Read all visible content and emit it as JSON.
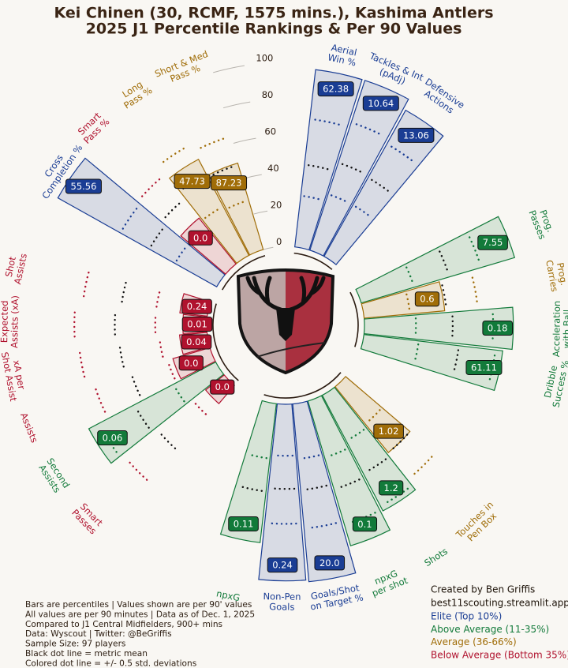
{
  "chart_data": {
    "type": "pizza",
    "title": "Kei Chinen (30, RCMF, 1575 mins.), Kashima Antlers",
    "subtitle": "2025 J1 Percentile Rankings & Per 90 Values",
    "categories": [
      "Aerial\nWin %",
      "Tackles & Int\n(pAdj)",
      "Defensive\nActions",
      "Prog.\nPasses",
      "Prog.\nCarries",
      "Acceleration\nwith Ball",
      "Dribble\nSuccess %",
      "Touches in\nPen Box",
      "Shots",
      "npxG\nper shot",
      "Goals/Shot\non Target %",
      "Non-Pen\nGoals",
      "npxG",
      "Smart\nPasses",
      "Second\nAssists",
      "Assists",
      "xA per\nShot Assist",
      "Expected\nAssists (xA)",
      "Shot\nAssists",
      "Cross\nCompletion %",
      "Smart\nPass %",
      "Long\nPass %",
      "Short & Med\nPass %"
    ],
    "percentiles": [
      97,
      97,
      91,
      87,
      44,
      81,
      76,
      46,
      71,
      82,
      97,
      96,
      76,
      13,
      78,
      21,
      15,
      13,
      15,
      99,
      32,
      59,
      49
    ],
    "values": [
      62.38,
      10.64,
      13.06,
      7.55,
      0.6,
      0.18,
      61.11,
      1.02,
      1.2,
      0.1,
      20.0,
      0.24,
      0.11,
      0.0,
      0.06,
      0.0,
      0.04,
      0.01,
      0.24,
      55.56,
      0.0,
      47.73,
      87.23
    ],
    "value_labels": [
      "62.38",
      "10.64",
      "13.06",
      "7.55",
      "0.6",
      "0.18",
      "61.11",
      "1.02",
      "1.2",
      "0.1",
      "20.0",
      "0.24",
      "0.11",
      "0.0",
      "0.06",
      "0.0",
      "0.04",
      "0.01",
      "0.24",
      "55.56",
      "0.0",
      "47.73",
      "87.23"
    ],
    "colors": [
      "#1a3d94",
      "#1a3d94",
      "#1a3d94",
      "#127a3a",
      "#a06d08",
      "#127a3a",
      "#127a3a",
      "#a06d08",
      "#127a3a",
      "#127a3a",
      "#1a3d94",
      "#1a3d94",
      "#127a3a",
      "#b0122e",
      "#127a3a",
      "#b0122e",
      "#b0122e",
      "#b0122e",
      "#b0122e",
      "#1a3d94",
      "#b0122e",
      "#a06d08",
      "#a06d08"
    ],
    "mean": [
      45,
      50,
      49,
      50,
      45,
      48,
      52,
      46,
      48,
      50,
      47,
      46,
      48,
      47,
      50,
      45,
      48,
      50,
      47,
      42,
      45,
      50,
      48
    ],
    "std_low": [
      28,
      32,
      32,
      30,
      25,
      28,
      30,
      26,
      28,
      32,
      30,
      28,
      30,
      22,
      26,
      24,
      26,
      28,
      28,
      26,
      25,
      30,
      28
    ],
    "std_high": [
      70,
      73,
      70,
      68,
      62,
      70,
      72,
      64,
      68,
      70,
      68,
      65,
      67,
      70,
      72,
      66,
      70,
      72,
      68,
      60,
      62,
      68,
      64
    ],
    "rlim": [
      0,
      100
    ],
    "rticks": [
      0,
      20,
      40,
      60,
      80,
      100
    ],
    "notes": [
      "Bars are percentiles | Values shown are per 90' values",
      "All values are per 90 minutes | Data as of Dec. 1, 2025",
      "Compared to J1 Central Midfielders, 900+ mins",
      "Data: Wyscout | Twitter: @BeGriffis",
      "Sample Size: 97 players",
      "Black dot line = metric mean",
      "Colored dot line = +/- 0.5 std. deviations"
    ],
    "credits": [
      "Created by Ben Griffis",
      "best11scouting.streamlit.app"
    ],
    "legend": [
      {
        "label": "Elite (Top 10%)",
        "color": "#1a3d94"
      },
      {
        "label": "Above Average (11-35%)",
        "color": "#127a3a"
      },
      {
        "label": "Average (36-66%)",
        "color": "#a06d08"
      },
      {
        "label": "Below Average (Bottom 35%)",
        "color": "#b0122e"
      }
    ]
  }
}
